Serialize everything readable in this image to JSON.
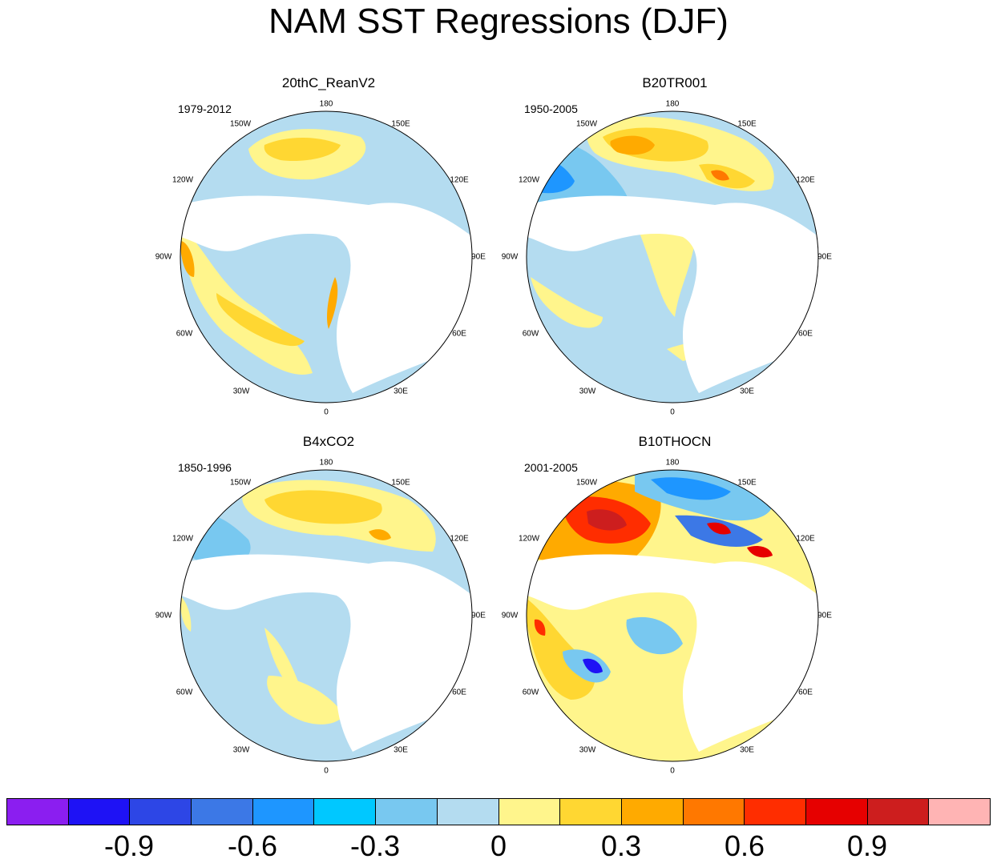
{
  "title": "NAM SST Regressions (DJF)",
  "panels": [
    {
      "name": "20thC_ReanV2",
      "period": "1979-2012"
    },
    {
      "name": "B20TR001",
      "period": "1950-2005"
    },
    {
      "name": "B4xCO2",
      "period": "1850-1996"
    },
    {
      "name": "B10THOCN",
      "period": "2001-2005"
    }
  ],
  "lon_labels": [
    "180",
    "150E",
    "120E",
    "90E",
    "60E",
    "30E",
    "0",
    "30W",
    "60W",
    "90W",
    "120W",
    "150W"
  ],
  "colorbar": {
    "colors": [
      "#8b1ef0",
      "#1e12f5",
      "#2d46e6",
      "#3c78e6",
      "#1e96ff",
      "#00c8ff",
      "#78c8f0",
      "#b4dcf0",
      "#fff58c",
      "#ffd732",
      "#ffaa00",
      "#ff7800",
      "#ff2d00",
      "#e60000",
      "#cd1e1e",
      "#ffb4b4"
    ],
    "labels": [
      "-0.9",
      "-0.6",
      "-0.3",
      "0",
      "0.3",
      "0.6",
      "0.9"
    ]
  }
}
